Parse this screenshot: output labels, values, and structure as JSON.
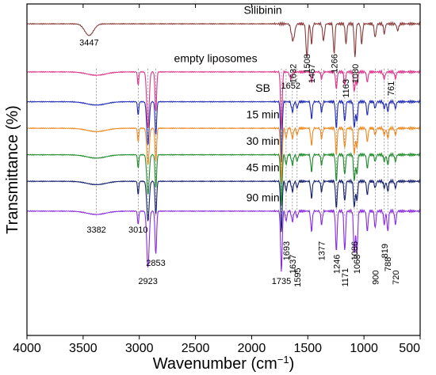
{
  "chart_data": {
    "type": "line",
    "title": "",
    "xlabel": "Wavenumber (cm",
    "xlabel_sup": "−1",
    "xlabel_end": ")",
    "ylabel": "Transmittance (%)",
    "xlim": [
      4000,
      500
    ],
    "x_inverted": true,
    "x_ticks": [
      4000,
      3500,
      3000,
      2500,
      2000,
      1500,
      1000,
      500
    ],
    "x_tick_labels": [
      "4000",
      "3500",
      "3000",
      "2500",
      "2000",
      "1500",
      "1000",
      "500"
    ],
    "y_ticks_shown": false,
    "grid": false,
    "legend": "labels placed above each trace",
    "series": [
      {
        "name": "Silibinin",
        "color": "#8b3a3a",
        "baseline": 0.06,
        "peaks": [
          [
            3447,
            0.035,
            55
          ],
          [
            1632,
            0.05,
            20
          ],
          [
            1508,
            0.1,
            12
          ],
          [
            1467,
            0.06,
            10
          ],
          [
            1360,
            0.05,
            12
          ],
          [
            1266,
            0.09,
            10
          ],
          [
            1160,
            0.06,
            10
          ],
          [
            1080,
            0.1,
            10
          ],
          [
            1020,
            0.06,
            10
          ],
          [
            900,
            0.04,
            12
          ],
          [
            819,
            0.03,
            10
          ],
          [
            700,
            0.02,
            12
          ]
        ]
      },
      {
        "name": "empty liposomes",
        "color": "#e0338a",
        "baseline": 0.205,
        "peaks": [
          [
            3382,
            0.01,
            120
          ],
          [
            3010,
            0.04,
            8
          ],
          [
            2923,
            0.17,
            15
          ],
          [
            2853,
            0.12,
            10
          ],
          [
            1735,
            0.17,
            10
          ],
          [
            1652,
            0.02,
            15
          ],
          [
            1467,
            0.03,
            10
          ],
          [
            1377,
            0.02,
            10
          ],
          [
            1246,
            0.05,
            10
          ],
          [
            1171,
            0.04,
            10
          ],
          [
            1086,
            0.06,
            10
          ],
          [
            1063,
            0.04,
            10
          ],
          [
            970,
            0.03,
            10
          ],
          [
            820,
            0.02,
            12
          ],
          [
            720,
            0.02,
            10
          ]
        ]
      },
      {
        "name": "SB",
        "color": "#1f2bb8",
        "baseline": 0.295,
        "peaks": [
          [
            3382,
            0.01,
            120
          ],
          [
            3010,
            0.04,
            8
          ],
          [
            2923,
            0.13,
            15
          ],
          [
            2853,
            0.1,
            10
          ],
          [
            1735,
            0.18,
            10
          ],
          [
            1637,
            0.03,
            12
          ],
          [
            1595,
            0.02,
            10
          ],
          [
            1467,
            0.05,
            10
          ],
          [
            1377,
            0.03,
            10
          ],
          [
            1246,
            0.08,
            10
          ],
          [
            1171,
            0.06,
            10
          ],
          [
            1086,
            0.08,
            10
          ],
          [
            1063,
            0.06,
            10
          ],
          [
            970,
            0.04,
            10
          ],
          [
            900,
            0.02,
            10
          ],
          [
            819,
            0.02,
            10
          ],
          [
            788,
            0.03,
            10
          ],
          [
            720,
            0.02,
            10
          ]
        ]
      },
      {
        "name": "15 min",
        "color": "#f08a20",
        "baseline": 0.375,
        "peaks": [
          [
            3382,
            0.01,
            120
          ],
          [
            3010,
            0.04,
            8
          ],
          [
            2923,
            0.11,
            15
          ],
          [
            2853,
            0.1,
            10
          ],
          [
            1735,
            0.16,
            10
          ],
          [
            1693,
            0.03,
            10
          ],
          [
            1637,
            0.03,
            12
          ],
          [
            1595,
            0.02,
            10
          ],
          [
            1467,
            0.05,
            10
          ],
          [
            1377,
            0.03,
            10
          ],
          [
            1246,
            0.08,
            10
          ],
          [
            1171,
            0.06,
            10
          ],
          [
            1086,
            0.08,
            10
          ],
          [
            1063,
            0.06,
            10
          ],
          [
            970,
            0.04,
            10
          ],
          [
            900,
            0.02,
            10
          ],
          [
            819,
            0.02,
            10
          ],
          [
            788,
            0.03,
            10
          ],
          [
            720,
            0.02,
            10
          ]
        ]
      },
      {
        "name": "30 min",
        "color": "#1e8c2a",
        "baseline": 0.455,
        "peaks": [
          [
            3382,
            0.01,
            120
          ],
          [
            3010,
            0.04,
            8
          ],
          [
            2923,
            0.12,
            15
          ],
          [
            2853,
            0.1,
            10
          ],
          [
            1735,
            0.15,
            10
          ],
          [
            1693,
            0.03,
            10
          ],
          [
            1637,
            0.03,
            12
          ],
          [
            1595,
            0.02,
            10
          ],
          [
            1467,
            0.05,
            10
          ],
          [
            1377,
            0.03,
            10
          ],
          [
            1246,
            0.08,
            10
          ],
          [
            1171,
            0.06,
            10
          ],
          [
            1086,
            0.08,
            10
          ],
          [
            1063,
            0.06,
            10
          ],
          [
            970,
            0.04,
            10
          ],
          [
            900,
            0.02,
            10
          ],
          [
            819,
            0.02,
            10
          ],
          [
            788,
            0.03,
            10
          ],
          [
            720,
            0.02,
            10
          ]
        ]
      },
      {
        "name": "45 min",
        "color": "#15206e",
        "baseline": 0.535,
        "peaks": [
          [
            3382,
            0.01,
            120
          ],
          [
            3010,
            0.04,
            8
          ],
          [
            2923,
            0.12,
            15
          ],
          [
            2853,
            0.1,
            10
          ],
          [
            1735,
            0.15,
            10
          ],
          [
            1693,
            0.03,
            10
          ],
          [
            1637,
            0.03,
            12
          ],
          [
            1595,
            0.02,
            10
          ],
          [
            1467,
            0.05,
            10
          ],
          [
            1377,
            0.03,
            10
          ],
          [
            1246,
            0.08,
            10
          ],
          [
            1171,
            0.06,
            10
          ],
          [
            1086,
            0.08,
            10
          ],
          [
            1063,
            0.06,
            10
          ],
          [
            970,
            0.04,
            10
          ],
          [
            900,
            0.02,
            10
          ],
          [
            819,
            0.02,
            10
          ],
          [
            788,
            0.03,
            10
          ],
          [
            720,
            0.02,
            10
          ]
        ]
      },
      {
        "name": "90 min",
        "color": "#8a2be2",
        "baseline": 0.625,
        "peaks": [
          [
            3382,
            0.01,
            120
          ],
          [
            3010,
            0.04,
            8
          ],
          [
            2923,
            0.17,
            15
          ],
          [
            2853,
            0.13,
            10
          ],
          [
            1735,
            0.18,
            10
          ],
          [
            1693,
            0.03,
            10
          ],
          [
            1637,
            0.03,
            12
          ],
          [
            1595,
            0.02,
            10
          ],
          [
            1467,
            0.06,
            10
          ],
          [
            1377,
            0.04,
            10
          ],
          [
            1246,
            0.12,
            10
          ],
          [
            1171,
            0.12,
            10
          ],
          [
            1086,
            0.13,
            10
          ],
          [
            1063,
            0.13,
            10
          ],
          [
            970,
            0.06,
            10
          ],
          [
            900,
            0.05,
            10
          ],
          [
            819,
            0.04,
            10
          ],
          [
            788,
            0.06,
            10
          ],
          [
            720,
            0.04,
            10
          ]
        ]
      }
    ],
    "peak_annotations": [
      {
        "text": "3447",
        "x": 3447,
        "series": "Silibinin"
      },
      {
        "text": "1632",
        "x": 1632,
        "series": "Silibinin"
      },
      {
        "text": "1508",
        "x": 1508,
        "series": "Silibinin"
      },
      {
        "text": "1467",
        "x": 1467,
        "series": "Silibinin"
      },
      {
        "text": "1266",
        "x": 1266,
        "series": "Silibinin"
      },
      {
        "text": "1080",
        "x": 1080,
        "series": "Silibinin"
      },
      {
        "text": "1652",
        "x": 1652,
        "series": "empty liposomes"
      },
      {
        "text": "1163",
        "x": 1163,
        "series": "empty liposomes"
      },
      {
        "text": "761",
        "x": 761,
        "series": "empty liposomes"
      },
      {
        "text": "3382",
        "x": 3382,
        "series": "90 min"
      },
      {
        "text": "3010",
        "x": 3010,
        "series": "90 min"
      },
      {
        "text": "2923",
        "x": 2923,
        "series": "90 min"
      },
      {
        "text": "2853",
        "x": 2853,
        "series": "90 min"
      },
      {
        "text": "1735",
        "x": 1735,
        "series": "90 min"
      },
      {
        "text": "1693",
        "x": 1693,
        "series": "90 min"
      },
      {
        "text": "1637",
        "x": 1637,
        "series": "90 min"
      },
      {
        "text": "1595",
        "x": 1595,
        "series": "90 min"
      },
      {
        "text": "1377",
        "x": 1377,
        "series": "90 min"
      },
      {
        "text": "1246",
        "x": 1246,
        "series": "90 min"
      },
      {
        "text": "1171",
        "x": 1171,
        "series": "90 min"
      },
      {
        "text": "1086",
        "x": 1086,
        "series": "90 min"
      },
      {
        "text": "1063",
        "x": 1063,
        "series": "90 min"
      },
      {
        "text": "900",
        "x": 900,
        "series": "90 min"
      },
      {
        "text": "819",
        "x": 819,
        "series": "90 min"
      },
      {
        "text": "788",
        "x": 788,
        "series": "90 min"
      },
      {
        "text": "720",
        "x": 720,
        "series": "90 min"
      }
    ],
    "reference_lines": [
      3382,
      3010,
      2923,
      2853,
      1735,
      1693,
      1637,
      1595,
      1377,
      1246,
      1171,
      1086,
      1063,
      900,
      819,
      788,
      720
    ]
  }
}
